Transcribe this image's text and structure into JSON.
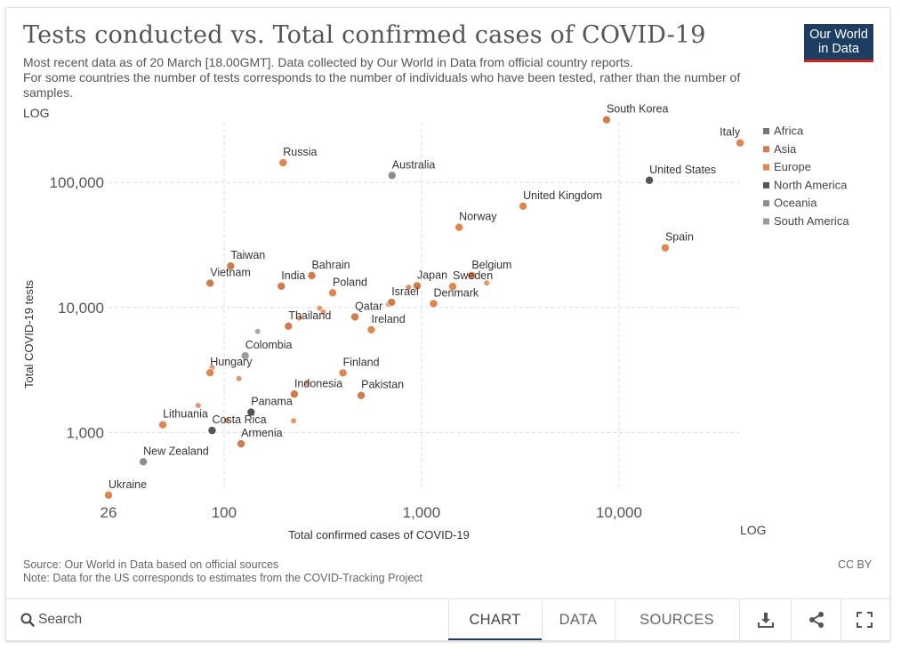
{
  "header": {
    "title": "Tests conducted vs. Total confirmed cases of COVID-19",
    "subtitle_line1": "Most recent data as of 20 March [18.00GMT]. Data collected by Our World in Data from official country reports.",
    "subtitle_line2": "For some countries the number of tests corresponds to the number of individuals who have been tested, rather than the number of samples.",
    "logo_line1": "Our World",
    "logo_line2": "in Data"
  },
  "chart_data": {
    "type": "scatter",
    "title": "Tests conducted vs. Total confirmed cases of COVID-19",
    "xlabel": "Total confirmed cases of COVID-19",
    "ylabel": "Total COVID-19 tests",
    "x_scale_label": "LOG",
    "y_scale_label": "LOG",
    "x_scale": "log",
    "y_scale": "log",
    "xlim": [
      26,
      41000
    ],
    "ylim": [
      300,
      300000
    ],
    "x_ticks": [
      {
        "value": 26,
        "label": "26"
      },
      {
        "value": 100,
        "label": "100"
      },
      {
        "value": 1000,
        "label": "1,000"
      },
      {
        "value": 10000,
        "label": "10,000"
      }
    ],
    "y_ticks": [
      {
        "value": 1000,
        "label": "1,000"
      },
      {
        "value": 10000,
        "label": "10,000"
      },
      {
        "value": 100000,
        "label": "100,000"
      }
    ],
    "grid": true,
    "legend_position": "right",
    "legend": [
      {
        "name": "Africa",
        "color": "#777777"
      },
      {
        "name": "Asia",
        "color": "#d27c4c"
      },
      {
        "name": "Europe",
        "color": "#e0854f"
      },
      {
        "name": "North America",
        "color": "#555555"
      },
      {
        "name": "Oceania",
        "color": "#8c8c8c"
      },
      {
        "name": "South America",
        "color": "#9c9c9c"
      }
    ],
    "points": [
      {
        "label": "South Korea",
        "x": 8652,
        "y": 316664,
        "color": "#d27c4c"
      },
      {
        "label": "Italy",
        "x": 41035,
        "y": 206886,
        "color": "#e0854f"
      },
      {
        "label": "United States",
        "x": 14250,
        "y": 103945,
        "color": "#555555"
      },
      {
        "label": "Russia",
        "x": 199,
        "y": 143519,
        "color": "#e0854f"
      },
      {
        "label": "Australia",
        "x": 709,
        "y": 113615,
        "color": "#8c8c8c"
      },
      {
        "label": "United Kingdom",
        "x": 3269,
        "y": 64621,
        "color": "#e0854f"
      },
      {
        "label": "Norway",
        "x": 1550,
        "y": 43735,
        "color": "#e0854f"
      },
      {
        "label": "Spain",
        "x": 17147,
        "y": 30000,
        "color": "#e0854f"
      },
      {
        "label": "Taiwan",
        "x": 108,
        "y": 21448,
        "color": "#d27c4c"
      },
      {
        "label": "Vietnam",
        "x": 85,
        "y": 15637,
        "color": "#d27c4c"
      },
      {
        "label": "India",
        "x": 195,
        "y": 14811,
        "color": "#d27c4c"
      },
      {
        "label": "Bahrain",
        "x": 278,
        "y": 18000,
        "color": "#d27c4c"
      },
      {
        "label": "Poland",
        "x": 355,
        "y": 13100,
        "color": "#e0854f"
      },
      {
        "label": "Belgium",
        "x": 1795,
        "y": 18000,
        "color": "#e0854f"
      },
      {
        "label": "Japan",
        "x": 950,
        "y": 14901,
        "color": "#d27c4c"
      },
      {
        "label": "Sweden",
        "x": 1439,
        "y": 14700,
        "color": "#e0854f"
      },
      {
        "label": "Israel",
        "x": 705,
        "y": 11000,
        "color": "#d27c4c"
      },
      {
        "label": "Denmark",
        "x": 1151,
        "y": 10730,
        "color": "#e0854f"
      },
      {
        "label": "Qatar",
        "x": 460,
        "y": 8400,
        "color": "#d27c4c"
      },
      {
        "label": "Ireland",
        "x": 557,
        "y": 6636,
        "color": "#e0854f"
      },
      {
        "label": "Thailand",
        "x": 212,
        "y": 7084,
        "color": "#d27c4c"
      },
      {
        "label": "Colombia",
        "x": 128,
        "y": 4103,
        "color": "#9c9c9c"
      },
      {
        "label": "Hungary",
        "x": 85,
        "y": 3007,
        "color": "#e0854f"
      },
      {
        "label": "Finland",
        "x": 400,
        "y": 3000,
        "color": "#e0854f"
      },
      {
        "label": "Indonesia",
        "x": 227,
        "y": 2028,
        "color": "#d27c4c"
      },
      {
        "label": "Pakistan",
        "x": 495,
        "y": 1979,
        "color": "#d27c4c"
      },
      {
        "label": "Panama",
        "x": 137,
        "y": 1455,
        "color": "#555555"
      },
      {
        "label": "Costa Rica",
        "x": 87,
        "y": 1039,
        "color": "#555555"
      },
      {
        "label": "Lithuania",
        "x": 49,
        "y": 1154,
        "color": "#e0854f"
      },
      {
        "label": "Armenia",
        "x": 122,
        "y": 813,
        "color": "#d27c4c"
      },
      {
        "label": "New Zealand",
        "x": 39,
        "y": 584,
        "color": "#8c8c8c"
      },
      {
        "label": "Ukraine",
        "x": 26,
        "y": 316,
        "color": "#e0854f"
      },
      {
        "label": "",
        "x": 860,
        "y": 14500,
        "color": "#d27c4c"
      },
      {
        "label": "",
        "x": 2140,
        "y": 15700,
        "color": "#e0854f"
      },
      {
        "label": "",
        "x": 305,
        "y": 9850,
        "color": "#e0854f"
      },
      {
        "label": "",
        "x": 318,
        "y": 9200,
        "color": "#e0854f"
      },
      {
        "label": "",
        "x": 240,
        "y": 8240,
        "color": "#e0854f"
      },
      {
        "label": "",
        "x": 680,
        "y": 10600,
        "color": "#e0854f"
      },
      {
        "label": "",
        "x": 148,
        "y": 6430,
        "color": "#9c9c9c"
      },
      {
        "label": "",
        "x": 87,
        "y": 3300,
        "color": "#e0854f"
      },
      {
        "label": "",
        "x": 119,
        "y": 2700,
        "color": "#e0854f"
      },
      {
        "label": "",
        "x": 74,
        "y": 1645,
        "color": "#e0854f"
      },
      {
        "label": "",
        "x": 263,
        "y": 2500,
        "color": "#e0854f"
      },
      {
        "label": "",
        "x": 103,
        "y": 1250,
        "color": "#e0854f"
      },
      {
        "label": "",
        "x": 225,
        "y": 1240,
        "color": "#e0854f"
      }
    ]
  },
  "footer": {
    "source": "Source: Our World in Data based on official sources",
    "note": "Note: Data for the US corresponds to estimates from the COVID-Tracking Project",
    "license": "CC BY"
  },
  "toolbar": {
    "search_label": "Search",
    "tabs": [
      "CHART",
      "DATA",
      "SOURCES"
    ],
    "active_tab": "CHART",
    "icons": [
      "download-icon",
      "share-icon",
      "fullscreen-icon"
    ]
  }
}
